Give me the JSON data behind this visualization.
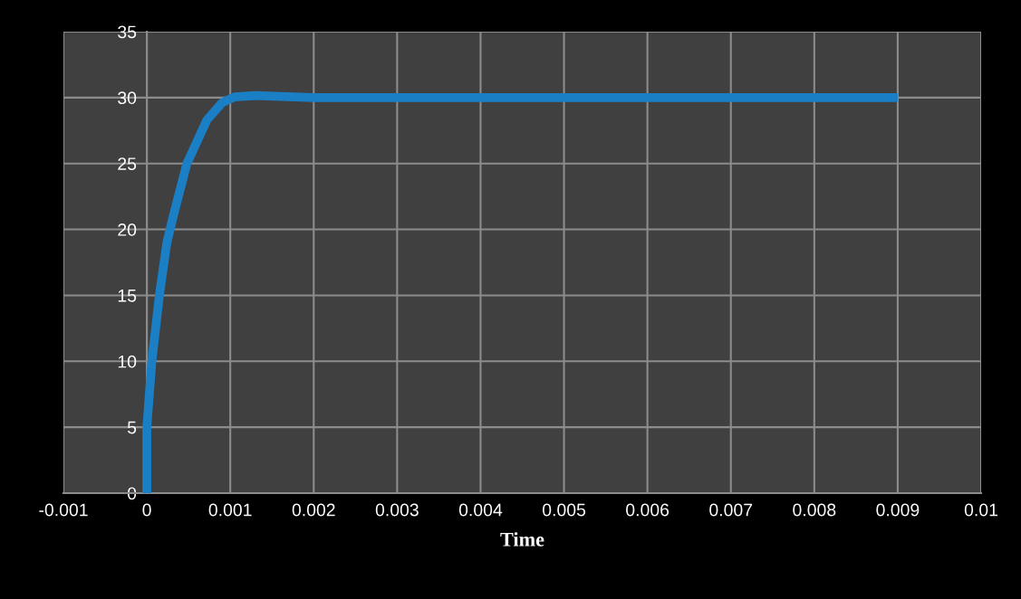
{
  "chart_data": {
    "type": "line",
    "xlabel": "Time",
    "x": [
      0,
      0,
      6e-05,
      0.00015,
      0.00024,
      0.00032,
      0.00048,
      0.00072,
      0.0009,
      0.00105,
      0.0013,
      0.002,
      0.004,
      0.006,
      0.009
    ],
    "series": [
      {
        "color": "#1a7fc4",
        "values": [
          0,
          5,
          10,
          15,
          19,
          21.1,
          25,
          28.3,
          29.6,
          30.05,
          30.15,
          30,
          30,
          30,
          30
        ]
      }
    ],
    "xlim": [
      -0.001,
      0.01
    ],
    "xticks": [
      -0.001,
      0,
      0.001,
      0.002,
      0.003,
      0.004,
      0.005,
      0.006,
      0.007,
      0.008,
      0.009,
      0.01
    ],
    "ylim": [
      0,
      35
    ],
    "yticks": [
      0,
      5,
      10,
      15,
      20,
      25,
      30,
      35
    ],
    "grid": true,
    "marker": "none",
    "line_style": "solid"
  }
}
